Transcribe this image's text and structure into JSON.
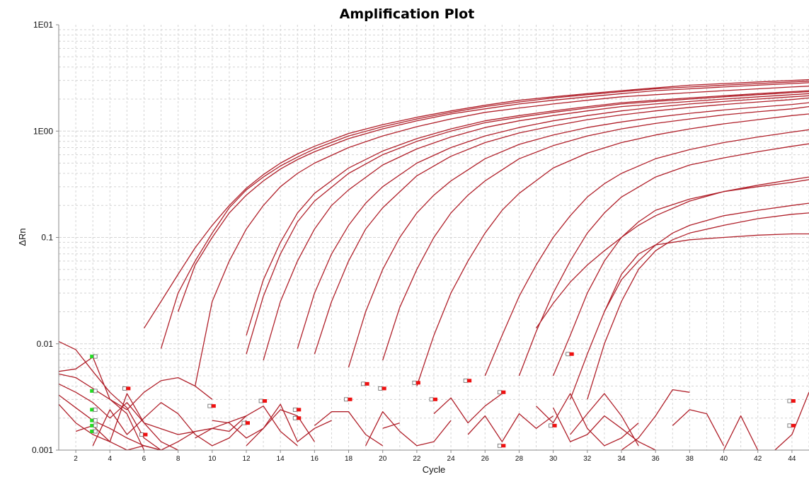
{
  "chart_data": {
    "type": "line",
    "title": "Amplification Plot",
    "xlabel": "Cycle",
    "ylabel": "ΔRn",
    "xlim": [
      1,
      45
    ],
    "ylim": [
      0.001,
      10
    ],
    "yscale": "log",
    "x_ticks": [
      2,
      4,
      6,
      8,
      10,
      12,
      14,
      16,
      18,
      20,
      22,
      24,
      26,
      28,
      30,
      32,
      34,
      36,
      38,
      40,
      42,
      44
    ],
    "y_ticks": [
      {
        "value": 10,
        "label": "1E01"
      },
      {
        "value": 1,
        "label": "1E00"
      },
      {
        "value": 0.1,
        "label": "0.1"
      },
      {
        "value": 0.01,
        "label": "0.01"
      },
      {
        "value": 0.001,
        "label": "0.001"
      }
    ],
    "grid": true,
    "colors": {
      "curve": "#b0202a",
      "baseline_start": "#22dd22",
      "baseline_end": "#ee1111",
      "grid": "#d4d4d4"
    },
    "curve_color": "#b0202a",
    "amplification_curves": [
      {
        "x": [
          6,
          7,
          8,
          9,
          10,
          11,
          12,
          13,
          14,
          15,
          16,
          18,
          20,
          22,
          24,
          26,
          28,
          30,
          32,
          34,
          36,
          38,
          40,
          42,
          44,
          45
        ],
        "y": [
          0.014,
          0.025,
          0.045,
          0.08,
          0.13,
          0.2,
          0.29,
          0.39,
          0.5,
          0.61,
          0.72,
          0.95,
          1.15,
          1.35,
          1.55,
          1.75,
          1.95,
          2.1,
          2.25,
          2.4,
          2.55,
          2.7,
          2.8,
          2.9,
          3.0,
          3.05
        ]
      },
      {
        "x": [
          7,
          8,
          9,
          10,
          11,
          12,
          13,
          14,
          15,
          16,
          18,
          20,
          22,
          24,
          26,
          28,
          30,
          32,
          34,
          36,
          38,
          40,
          42,
          44,
          45
        ],
        "y": [
          0.009,
          0.03,
          0.06,
          0.11,
          0.19,
          0.28,
          0.37,
          0.47,
          0.57,
          0.68,
          0.9,
          1.1,
          1.3,
          1.5,
          1.7,
          1.88,
          2.05,
          2.2,
          2.35,
          2.5,
          2.6,
          2.7,
          2.8,
          2.9,
          2.95
        ]
      },
      {
        "x": [
          8,
          9,
          10,
          11,
          12,
          13,
          14,
          15,
          16,
          18,
          20,
          22,
          24,
          26,
          28,
          30,
          32,
          34,
          36,
          38,
          40,
          42,
          44,
          45
        ],
        "y": [
          0.02,
          0.055,
          0.1,
          0.17,
          0.25,
          0.34,
          0.44,
          0.54,
          0.64,
          0.85,
          1.05,
          1.25,
          1.45,
          1.62,
          1.8,
          1.95,
          2.1,
          2.25,
          2.4,
          2.5,
          2.6,
          2.7,
          2.8,
          2.85
        ]
      },
      {
        "x": [
          9,
          10,
          11,
          12,
          13,
          14,
          15,
          16,
          18,
          20,
          22,
          24,
          26,
          28,
          30,
          32,
          34,
          36,
          38,
          40,
          42,
          44,
          45
        ],
        "y": [
          0.004,
          0.025,
          0.06,
          0.12,
          0.2,
          0.3,
          0.4,
          0.5,
          0.7,
          0.9,
          1.1,
          1.3,
          1.5,
          1.65,
          1.8,
          1.95,
          2.1,
          2.2,
          2.3,
          2.4,
          2.5,
          2.6,
          2.65
        ]
      },
      {
        "x": [
          12,
          13,
          14,
          15,
          16,
          18,
          20,
          22,
          24,
          26,
          28,
          30,
          32,
          34,
          36,
          38,
          40,
          42,
          44,
          45
        ],
        "y": [
          0.012,
          0.04,
          0.09,
          0.17,
          0.26,
          0.45,
          0.65,
          0.85,
          1.05,
          1.25,
          1.4,
          1.55,
          1.7,
          1.85,
          1.95,
          2.05,
          2.15,
          2.25,
          2.35,
          2.4
        ]
      },
      {
        "x": [
          12,
          13,
          14,
          15,
          16,
          18,
          20,
          22,
          24,
          26,
          28,
          30,
          32,
          34,
          36,
          38,
          40,
          42,
          44,
          45
        ],
        "y": [
          0.008,
          0.028,
          0.07,
          0.14,
          0.22,
          0.4,
          0.6,
          0.8,
          1.0,
          1.2,
          1.35,
          1.5,
          1.65,
          1.8,
          1.9,
          2.0,
          2.1,
          2.2,
          2.3,
          2.35
        ]
      },
      {
        "x": [
          13,
          14,
          15,
          16,
          17,
          18,
          20,
          22,
          24,
          26,
          28,
          30,
          32,
          34,
          36,
          38,
          40,
          42,
          44,
          45
        ],
        "y": [
          0.007,
          0.025,
          0.06,
          0.12,
          0.2,
          0.28,
          0.48,
          0.68,
          0.88,
          1.08,
          1.25,
          1.4,
          1.55,
          1.7,
          1.8,
          1.9,
          2.0,
          2.1,
          2.2,
          2.25
        ]
      },
      {
        "x": [
          15,
          16,
          17,
          18,
          19,
          20,
          22,
          24,
          26,
          28,
          30,
          32,
          34,
          36,
          38,
          40,
          42,
          44,
          45
        ],
        "y": [
          0.009,
          0.03,
          0.07,
          0.13,
          0.21,
          0.3,
          0.5,
          0.7,
          0.9,
          1.08,
          1.25,
          1.4,
          1.55,
          1.68,
          1.8,
          1.9,
          2.0,
          2.1,
          2.15
        ]
      },
      {
        "x": [
          16,
          17,
          18,
          19,
          20,
          22,
          24,
          26,
          28,
          30,
          32,
          34,
          36,
          38,
          40,
          42,
          44,
          45
        ],
        "y": [
          0.008,
          0.025,
          0.06,
          0.12,
          0.19,
          0.38,
          0.58,
          0.78,
          0.96,
          1.12,
          1.28,
          1.42,
          1.55,
          1.67,
          1.78,
          1.88,
          1.98,
          2.05
        ]
      },
      {
        "x": [
          18,
          19,
          20,
          21,
          22,
          23,
          24,
          26,
          28,
          30,
          32,
          34,
          36,
          38,
          40,
          42,
          44,
          45
        ],
        "y": [
          0.006,
          0.02,
          0.05,
          0.1,
          0.17,
          0.25,
          0.34,
          0.55,
          0.75,
          0.92,
          1.08,
          1.22,
          1.35,
          1.47,
          1.58,
          1.68,
          1.78,
          1.85
        ]
      },
      {
        "x": [
          20,
          21,
          22,
          23,
          24,
          25,
          26,
          28,
          30,
          32,
          34,
          36,
          38,
          40,
          42,
          44,
          45
        ],
        "y": [
          0.007,
          0.022,
          0.05,
          0.1,
          0.17,
          0.25,
          0.34,
          0.55,
          0.73,
          0.9,
          1.05,
          1.18,
          1.3,
          1.42,
          1.52,
          1.62,
          1.7
        ]
      },
      {
        "x": [
          22,
          23,
          24,
          25,
          26,
          27,
          28,
          30,
          32,
          34,
          36,
          38,
          40,
          42,
          44,
          45
        ],
        "y": [
          0.004,
          0.012,
          0.03,
          0.06,
          0.11,
          0.18,
          0.26,
          0.45,
          0.62,
          0.78,
          0.92,
          1.05,
          1.17,
          1.28,
          1.4,
          1.45
        ]
      },
      {
        "x": [
          26,
          27,
          28,
          29,
          30,
          31,
          32,
          33,
          34,
          36,
          38,
          40,
          42,
          44,
          45
        ],
        "y": [
          0.005,
          0.012,
          0.028,
          0.055,
          0.1,
          0.16,
          0.24,
          0.32,
          0.4,
          0.55,
          0.67,
          0.78,
          0.88,
          0.98,
          1.03
        ]
      },
      {
        "x": [
          28,
          29,
          30,
          31,
          32,
          33,
          34,
          36,
          38,
          40,
          42,
          44,
          45
        ],
        "y": [
          0.005,
          0.013,
          0.03,
          0.06,
          0.11,
          0.17,
          0.24,
          0.37,
          0.48,
          0.56,
          0.64,
          0.72,
          0.76
        ]
      },
      {
        "x": [
          29,
          30,
          31,
          32,
          33,
          34,
          35,
          36,
          38,
          40,
          42,
          44,
          45
        ],
        "y": [
          0.014,
          0.024,
          0.038,
          0.055,
          0.075,
          0.1,
          0.13,
          0.16,
          0.22,
          0.27,
          0.31,
          0.35,
          0.37
        ]
      },
      {
        "x": [
          30,
          31,
          32,
          33,
          34,
          35,
          36,
          38,
          40,
          42,
          44,
          45
        ],
        "y": [
          0.005,
          0.012,
          0.03,
          0.06,
          0.1,
          0.14,
          0.18,
          0.23,
          0.27,
          0.3,
          0.33,
          0.35
        ]
      },
      {
        "x": [
          33,
          34,
          35,
          36,
          37,
          38,
          40,
          42,
          44,
          45
        ],
        "y": [
          0.02,
          0.04,
          0.06,
          0.085,
          0.11,
          0.13,
          0.16,
          0.18,
          0.2,
          0.21
        ]
      },
      {
        "x": [
          32,
          33,
          34,
          35,
          36,
          37,
          38,
          40,
          42,
          44,
          45
        ],
        "y": [
          0.003,
          0.01,
          0.025,
          0.05,
          0.075,
          0.095,
          0.11,
          0.13,
          0.15,
          0.165,
          0.17
        ]
      },
      {
        "x": [
          31,
          32,
          33,
          34,
          35,
          36,
          38,
          40,
          42,
          44,
          45
        ],
        "y": [
          0.003,
          0.008,
          0.02,
          0.045,
          0.07,
          0.085,
          0.095,
          0.1,
          0.105,
          0.108,
          0.108
        ]
      }
    ],
    "baseline_noise": [
      {
        "x": [
          1,
          2,
          3,
          4,
          5,
          6,
          7
        ],
        "y": [
          0.0105,
          0.0088,
          0.0055,
          0.0035,
          0.0025,
          0.0013,
          0.001
        ]
      },
      {
        "x": [
          1,
          2,
          3,
          4,
          5,
          6
        ],
        "y": [
          0.0055,
          0.0058,
          0.0075,
          0.003,
          0.0022,
          0.001
        ]
      },
      {
        "x": [
          1,
          2,
          3,
          4,
          5,
          6,
          7,
          8,
          9,
          10
        ],
        "y": [
          0.0052,
          0.0048,
          0.0038,
          0.003,
          0.0024,
          0.0035,
          0.0045,
          0.0048,
          0.004,
          0.003
        ]
      },
      {
        "x": [
          1,
          2,
          3,
          4,
          5,
          6,
          8,
          10,
          12
        ],
        "y": [
          0.0042,
          0.0035,
          0.0028,
          0.002,
          0.0028,
          0.0018,
          0.0014,
          0.0016,
          0.0021
        ]
      },
      {
        "x": [
          1,
          2,
          3,
          4,
          5,
          6,
          7,
          8,
          9
        ],
        "y": [
          0.0033,
          0.0025,
          0.0019,
          0.0016,
          0.0013,
          0.0011,
          0.001,
          0.0012,
          0.0015
        ]
      },
      {
        "x": [
          1,
          2,
          3,
          4,
          5,
          6,
          7
        ],
        "y": [
          0.0027,
          0.0018,
          0.0014,
          0.0012,
          0.001,
          0.0011,
          0.001
        ]
      },
      {
        "x": [
          2,
          3,
          4,
          5,
          6,
          7,
          8
        ],
        "y": [
          0.0015,
          0.0017,
          0.0012,
          0.0034,
          0.0018,
          0.0012,
          0.001
        ]
      },
      {
        "x": [
          3,
          4,
          5,
          6,
          7,
          8,
          9,
          10,
          11,
          12
        ],
        "y": [
          0.0011,
          0.0024,
          0.0014,
          0.002,
          0.0028,
          0.0022,
          0.0014,
          0.0011,
          0.0013,
          0.0019
        ]
      },
      {
        "x": [
          9,
          10,
          11,
          12,
          13,
          14,
          15
        ],
        "y": [
          0.0013,
          0.0016,
          0.0015,
          0.0021,
          0.0026,
          0.0015,
          0.0011
        ]
      },
      {
        "x": [
          10,
          11,
          12,
          13,
          14,
          15,
          16
        ],
        "y": [
          0.0019,
          0.0018,
          0.0013,
          0.0016,
          0.0024,
          0.0021,
          0.0012
        ]
      },
      {
        "x": [
          12,
          13,
          14,
          15,
          16,
          17
        ],
        "y": [
          0.0011,
          0.0016,
          0.0027,
          0.0012,
          0.0016,
          0.0019
        ]
      },
      {
        "x": [
          16,
          17,
          18,
          19,
          20
        ],
        "y": [
          0.0017,
          0.0023,
          0.0023,
          0.0014,
          0.0011
        ]
      },
      {
        "x": [
          19,
          20,
          21,
          22,
          23,
          24
        ],
        "y": [
          0.0011,
          0.0023,
          0.0015,
          0.0011,
          0.0012,
          0.0019
        ]
      },
      {
        "x": [
          20,
          21
        ],
        "y": [
          0.0016,
          0.0018
        ]
      },
      {
        "x": [
          23,
          24,
          25,
          26,
          27
        ],
        "y": [
          0.0022,
          0.0031,
          0.0018,
          0.0026,
          0.0034
        ]
      },
      {
        "x": [
          25,
          26,
          27,
          28,
          29,
          30
        ],
        "y": [
          0.0014,
          0.0021,
          0.0012,
          0.0022,
          0.0016,
          0.0021
        ]
      },
      {
        "x": [
          29,
          30,
          31,
          32,
          33,
          34,
          35
        ],
        "y": [
          0.0026,
          0.0018,
          0.0034,
          0.0016,
          0.0011,
          0.0013,
          0.0018
        ]
      },
      {
        "x": [
          30,
          31,
          32,
          33,
          34,
          35,
          36
        ],
        "y": [
          0.0025,
          0.0012,
          0.0014,
          0.0021,
          0.0016,
          0.0012,
          0.001
        ]
      },
      {
        "x": [
          31,
          32,
          33,
          34,
          35
        ],
        "y": [
          0.0014,
          0.0022,
          0.0034,
          0.0021,
          0.0011
        ]
      },
      {
        "x": [
          34,
          35,
          36,
          37,
          38
        ],
        "y": [
          0.001,
          0.0013,
          0.0021,
          0.0037,
          0.0035
        ]
      },
      {
        "x": [
          37,
          38,
          39,
          40
        ],
        "y": [
          0.0017,
          0.0024,
          0.0022,
          0.0011
        ]
      },
      {
        "x": [
          40,
          41,
          42
        ],
        "y": [
          0.001,
          0.0021,
          0.001
        ]
      },
      {
        "x": [
          43,
          44,
          45
        ],
        "y": [
          0.001,
          0.0014,
          0.0035
        ]
      }
    ],
    "baseline_start_markers": [
      {
        "x": 3,
        "y": 0.0076
      },
      {
        "x": 3,
        "y": 0.0036
      },
      {
        "x": 3,
        "y": 0.0024
      },
      {
        "x": 3,
        "y": 0.0019
      },
      {
        "x": 3,
        "y": 0.0017
      },
      {
        "x": 3,
        "y": 0.0015
      }
    ],
    "baseline_end_markers": [
      {
        "x": 5,
        "y": 0.0038
      },
      {
        "x": 6,
        "y": 0.0014
      },
      {
        "x": 10,
        "y": 0.0026
      },
      {
        "x": 12,
        "y": 0.0018
      },
      {
        "x": 13,
        "y": 0.0029
      },
      {
        "x": 15,
        "y": 0.0024
      },
      {
        "x": 15,
        "y": 0.002
      },
      {
        "x": 18,
        "y": 0.003
      },
      {
        "x": 19,
        "y": 0.0042
      },
      {
        "x": 20,
        "y": 0.0038
      },
      {
        "x": 22,
        "y": 0.0043
      },
      {
        "x": 23,
        "y": 0.003
      },
      {
        "x": 25,
        "y": 0.0045
      },
      {
        "x": 27,
        "y": 0.0035
      },
      {
        "x": 27,
        "y": 0.0011
      },
      {
        "x": 30,
        "y": 0.0017
      },
      {
        "x": 31,
        "y": 0.008
      },
      {
        "x": 44,
        "y": 0.0029
      },
      {
        "x": 44,
        "y": 0.0017
      }
    ]
  }
}
